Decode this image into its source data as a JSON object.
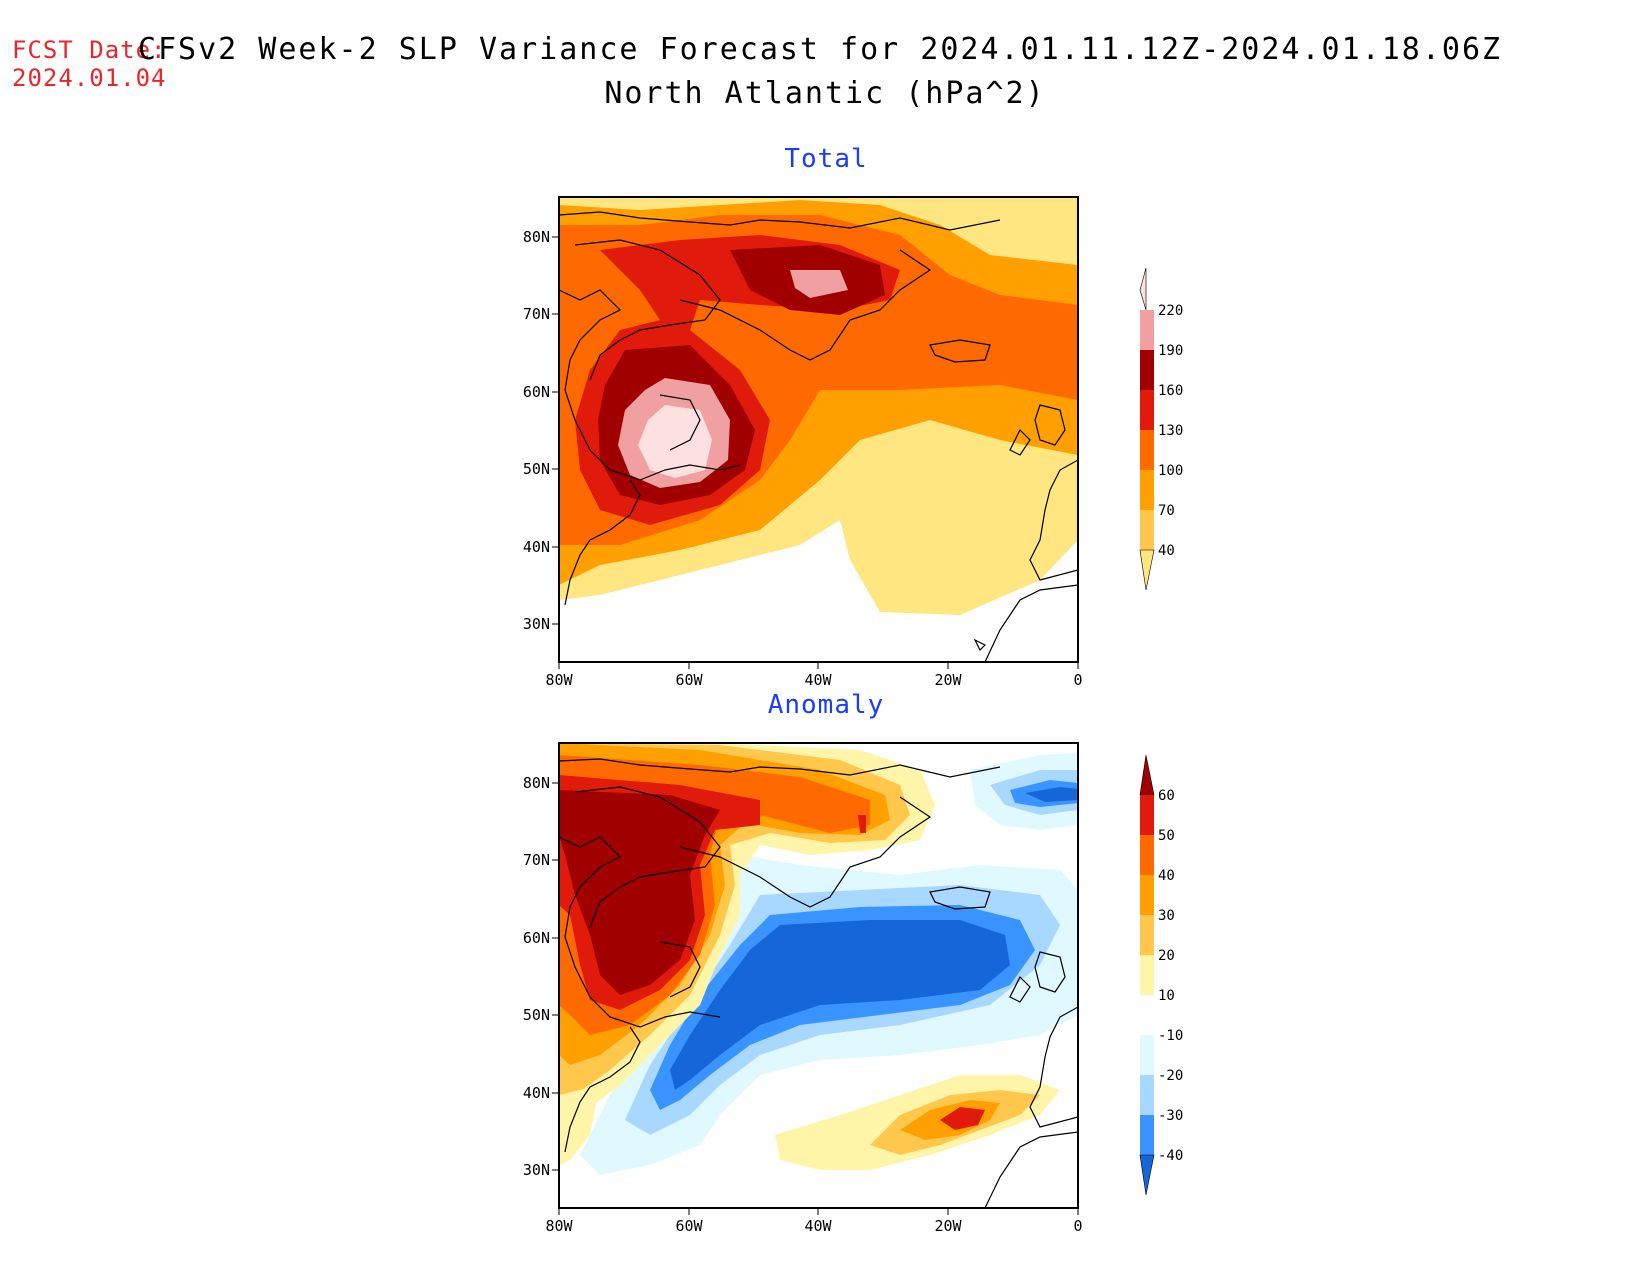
{
  "header": {
    "fcst_label": "FCST Date:",
    "fcst_date": "2024.01.04",
    "title_line1": "CFSv2 Week-2 SLP Variance Forecast for 2024.01.11.12Z-2024.01.18.06Z",
    "title_line2": "North Atlantic (hPa^2)"
  },
  "axes": {
    "lat_labels": [
      "80N",
      "70N",
      "60N",
      "50N",
      "40N",
      "30N"
    ],
    "lon_labels": [
      "80W",
      "60W",
      "40W",
      "20W",
      "0"
    ]
  },
  "panels": [
    {
      "title": "Total",
      "colorbar": {
        "levels": [
          "220",
          "190",
          "160",
          "130",
          "100",
          "70",
          "40"
        ],
        "colors": [
          "#fde0e0",
          "#f0a0a0",
          "#a00000",
          "#e11b0c",
          "#ff6a00",
          "#ff9f00",
          "#ffc84d",
          "#ffe680"
        ]
      }
    },
    {
      "title": "Anomaly",
      "colorbar": {
        "levels": [
          "60",
          "50",
          "40",
          "30",
          "20",
          "10",
          "-10",
          "-20",
          "-30",
          "-40"
        ],
        "colors": [
          "#a00000",
          "#e11b0c",
          "#ff6a00",
          "#ff9f00",
          "#ffc84d",
          "#fff5a8",
          "#ffffff",
          "#e0f8ff",
          "#a8d8ff",
          "#3a94ff",
          "#1566d8"
        ]
      }
    }
  ]
}
